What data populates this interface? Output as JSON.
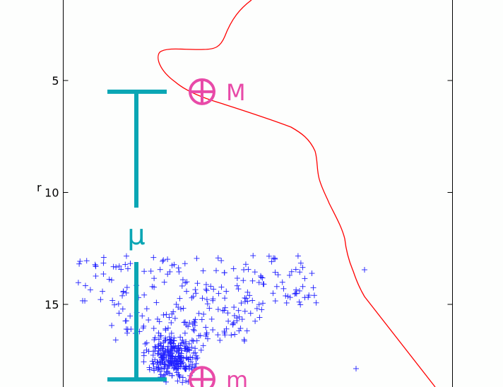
{
  "chart_data": {
    "type": "scatter",
    "title": "",
    "xlabel": "",
    "ylabel": "r",
    "y_inverted": true,
    "ylim": [
      19.5,
      1.5
    ],
    "yticks": [
      {
        "value": 5,
        "label": "5"
      },
      {
        "value": 10,
        "label": "10"
      },
      {
        "value": 15,
        "label": "15"
      }
    ],
    "grid": false,
    "legend": "none",
    "colors": {
      "stars": "#2020ff",
      "isochrone": "#ff0000",
      "mu_bar": "#0aa6b4",
      "markers": "#e84aa8",
      "axes": "#000000"
    },
    "marker_M": {
      "label": "M",
      "r": 5.5
    },
    "marker_m": {
      "label": "m",
      "r": 18.35
    },
    "distance_modulus": {
      "label": "μ",
      "top": 5.5,
      "bottom": 18.35
    },
    "star_count": 520,
    "star_regions": [
      {
        "name": "upper-scatter",
        "r_range": [
          13.2,
          15.0
        ],
        "weight": 0.28
      },
      {
        "name": "mid-scatter",
        "r_range": [
          15.0,
          16.5
        ],
        "weight": 0.18
      },
      {
        "name": "dense-clump",
        "r_range": [
          16.5,
          18.6
        ],
        "weight": 0.54
      }
    ]
  }
}
